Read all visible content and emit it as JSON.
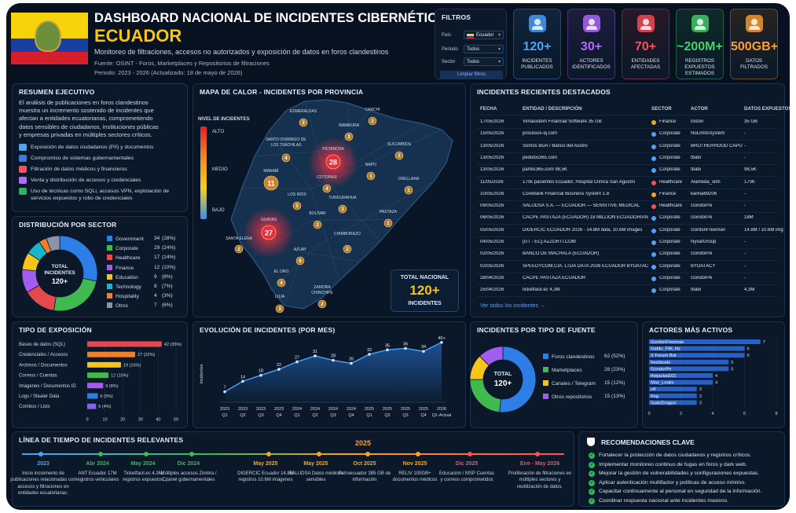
{
  "header": {
    "title": "DASHBOARD NACIONAL DE INCIDENTES CIBERNÉTICOS",
    "country": "ECUADOR",
    "subtitle": "Monitoreo de filtraciones, accesos no autorizados y exposición de datos en foros clandestinos",
    "source": "Fuente: OSINT - Foros, Marketplaces y Repositorios de filtraciones",
    "period": "Periodo: 2023 - 2026 (Actualizado: 18 de mayo de 2026)",
    "flag_colors": [
      "#f6d30b",
      "#1a3fa0",
      "#d61f2c"
    ]
  },
  "filters": {
    "title": "FILTROS",
    "rows": [
      {
        "label": "País",
        "value": "Ecuador"
      },
      {
        "label": "Periodo",
        "value": "Todos"
      },
      {
        "label": "Sector",
        "value": "Todos"
      }
    ],
    "button": "Limpiar filtros"
  },
  "kpis": [
    {
      "value": "120+",
      "label": "INCIDENTES PUBLICADOS",
      "color": "#4aa3ff",
      "icon": "users-icon"
    },
    {
      "value": "30+",
      "label": "ACTORES IDENTIFICADOS",
      "color": "#b26bff",
      "icon": "hacker-icon"
    },
    {
      "value": "70+",
      "label": "ENTIDADES AFECTADAS",
      "color": "#ff4d5a",
      "icon": "building-icon"
    },
    {
      "value": "~200M+",
      "label": "REGISTROS EXPUESTOS ESTIMADOS",
      "color": "#47d16a",
      "icon": "database-icon"
    },
    {
      "value": "500GB+",
      "label": "DATOS FILTRADOS",
      "color": "#ff9f2e",
      "icon": "file-icon"
    }
  ],
  "summary": {
    "title": "RESUMEN EJECUTIVO",
    "text_lines": [
      "El análisis de publicaciones en foros clandestinos",
      "muestra un incremento sostenido de incidentes que",
      "afectan a entidades ecuatorianas, comprometiendo",
      "datos sensibles de ciudadanos, instituciones públicas",
      "y empresas privadas en múltiples sectores críticos."
    ],
    "bullets": [
      {
        "text": "Exposición de datos ciudadanos (PII) y documentos",
        "color": "#4aa3ff"
      },
      {
        "text": "Compromiso de sistemas gubernamentales",
        "color": "#3b7be0"
      },
      {
        "text": "Filtración de datos médicos y financieros",
        "color": "#ff4d5a"
      },
      {
        "text": "Venta y distribución de accesos y credenciales",
        "color": "#b26bff"
      },
      {
        "text": "Uso de técnicas como SQLi, accesos VPN, explotación de servicios expuestos y robo de credenciales",
        "color": "#2fb35a"
      }
    ]
  },
  "heatmap": {
    "title": "MAPA DE CALOR - INCIDENTES POR PROVINCIA",
    "legend_title": "NIVEL DE INCIDENTES",
    "legend_labels": [
      "ALTO",
      "MEDIO",
      "BAJO"
    ],
    "provinces": [
      {
        "name": "ESMERALDAS",
        "value": "3"
      },
      {
        "name": "CARCHI",
        "value": "2"
      },
      {
        "name": "IMBABURA",
        "value": "3"
      },
      {
        "name": "SANTO DOMINGO DE LOS TSÁCHILAS",
        "value": "4"
      },
      {
        "name": "PICHINCHA",
        "value": "28"
      },
      {
        "name": "SUCUMBÍOS",
        "value": "2"
      },
      {
        "name": "MANABÍ",
        "value": "11"
      },
      {
        "name": "COTOPAXI",
        "value": "4"
      },
      {
        "name": "NAPO",
        "value": "1"
      },
      {
        "name": "ORELLANA",
        "value": "1"
      },
      {
        "name": "LOS RÍOS",
        "value": "5"
      },
      {
        "name": "TUNGURAHUA",
        "value": "3"
      },
      {
        "name": "GUAYAS",
        "value": "27"
      },
      {
        "name": "BOLÍVAR",
        "value": "2"
      },
      {
        "name": "PASTAZA",
        "value": "1"
      },
      {
        "name": "SANTA ELENA",
        "value": "2"
      },
      {
        "name": "CHIMBORAZO",
        "value": "2"
      },
      {
        "name": "AZUAY",
        "value": "6"
      },
      {
        "name": "EL ORO",
        "value": "4"
      },
      {
        "name": "LOJA",
        "value": "3"
      },
      {
        "name": "ZAMORA CHINCHIPE",
        "value": "2"
      }
    ],
    "total_label": "TOTAL NACIONAL",
    "total_value": "120+",
    "total_unit": "INCIDENTES"
  },
  "recent": {
    "title": "INCIDENTES RECIENTES DESTACADOS",
    "columns": [
      "FECHA",
      "ENTIDAD / DESCRIPCIÓN",
      "SECTOR",
      "ACTOR",
      "DATOS EXPUESTOS"
    ],
    "rows": [
      [
        "17/05/2026",
        "Vimasistem Financial Software 35 GB",
        "Finance",
        "tostón",
        "35 GB"
      ],
      [
        "15/05/2026",
        "procesos-iq.com",
        "Corporate",
        "NoLimitsSystem",
        "-"
      ],
      [
        "13/05/2026",
        "Somos BDA / Banco del Austro",
        "Corporate",
        "BROTHERHOOD CAPUNG",
        "-"
      ],
      [
        "13/05/2026",
        "pedidos365.com",
        "Corporate",
        "tbabi",
        "-"
      ],
      [
        "13/05/2026",
        "partes365.com 98,5K",
        "Corporate",
        "tbabi",
        "98,5K"
      ],
      [
        "11/05/2026",
        "170k pacientes Ecuador, Hospital Clínica San Agustín",
        "Healthcare",
        "Alameda_slim",
        "170K"
      ],
      [
        "10/05/2026",
        "CoreBank Financial Business System 1.8",
        "Finance",
        "karina69206",
        "-"
      ],
      [
        "09/05/2026",
        "SALUDSA S.A. — ECUADOR — SENSITIVE MEDICAL",
        "Healthcare",
        "GondorPe",
        "-"
      ],
      [
        "06/05/2026",
        "CACPE PASTAZA (ECUADOR) 18 MILLION ECUADORIANS",
        "Corporate",
        "GondorPe",
        "18M"
      ],
      [
        "05/05/2026",
        "DIGERCIC ECUADOR 2026 - 14.8M data, 10.6M images",
        "Corporate",
        "GordonFreeman",
        "14.8M / 10.6M img"
      ],
      [
        "04/05/2026",
        "[GT - EC] AZZORTI.COM",
        "Corporate",
        "NyxarGroup",
        "-"
      ],
      [
        "02/05/2026",
        "BANCO DE MACHALA (ECUADOR)",
        "Corporate",
        "GondorPe",
        "-"
      ],
      [
        "02/05/2026",
        "SPEEDYCOM.CIA. LTDA DATA 2026 ECUADOR BYDATACY",
        "Corporate",
        "BYDATACY",
        "-"
      ],
      [
        "28/04/2026",
        "CACPE PASTAZA ECUADOR",
        "Corporate",
        "GondorPe",
        "-"
      ],
      [
        "25/04/2026",
        "ticketfacil.ec 4,3M",
        "Corporate",
        "tbabi",
        "4,3M"
      ]
    ],
    "link": "Ver todos los incidentes →",
    "sector_colors": {
      "Finance": "#f5a524",
      "Corporate": "#4aa3ff",
      "Healthcare": "#ff4d5a"
    }
  },
  "sectors": {
    "title": "DISTRIBUCIÓN POR SECTOR",
    "center_label": "TOTAL INCIDENTES",
    "center_value": "120+",
    "items": [
      {
        "name": "Government",
        "count": "34",
        "pct": "(28%)",
        "value": 34,
        "color": "#2e7ee8"
      },
      {
        "name": "Corporate",
        "count": "29",
        "pct": "(24%)",
        "value": 29,
        "color": "#3fb950"
      },
      {
        "name": "Healthcare",
        "count": "17",
        "pct": "(14%)",
        "value": 17,
        "color": "#e5484d"
      },
      {
        "name": "Finance",
        "count": "12",
        "pct": "(10%)",
        "value": 12,
        "color": "#a35cf0"
      },
      {
        "name": "Education",
        "count": "9",
        "pct": "(8%)",
        "value": 9,
        "color": "#f5c518"
      },
      {
        "name": "Technology",
        "count": "8",
        "pct": "(7%)",
        "value": 8,
        "color": "#19b6c9"
      },
      {
        "name": "Hospitality",
        "count": "4",
        "pct": "(3%)",
        "value": 4,
        "color": "#ef7f2a"
      },
      {
        "name": "Otros",
        "count": "7",
        "pct": "(6%)",
        "value": 7,
        "color": "#8a96a8"
      }
    ]
  },
  "chart_data": [
    {
      "type": "bar",
      "title": "TIPO DE EXPOSICIÓN",
      "orientation": "horizontal",
      "categories": [
        "Bases de datos (SQL)",
        "Credenciales / Accesos",
        "Archivos / Documentos",
        "Correos / Cuentas",
        "Imágenes / Documentos ID",
        "Logs / Stealer Data",
        "Combos / Lists"
      ],
      "values": [
        42,
        27,
        19,
        12,
        9,
        6,
        5
      ],
      "labels": [
        "42 (35%)",
        "27 (22%)",
        "19 (16%)",
        "12 (10%)",
        "9 (8%)",
        "6 (5%)",
        "5 (4%)"
      ],
      "colors": [
        "#e5484d",
        "#ef7f2a",
        "#f5c518",
        "#3fb950",
        "#a35cf0",
        "#2e7ee8",
        "#8a5cf0"
      ],
      "xlim": [
        0,
        50
      ],
      "xticks": [
        "0",
        "10",
        "20",
        "30",
        "40",
        "50"
      ]
    },
    {
      "type": "area",
      "title": "EVOLUCIÓN DE INCIDENTES (POR MES)",
      "ylabel": "Incidentes",
      "categories": [
        "2023 Q1",
        "2023 Q2",
        "2023 Q3",
        "2023 Q4",
        "2024 Q1",
        "2024 Q2",
        "2024 Q3",
        "2024 Q4",
        "2025 Q1",
        "2025 Q2",
        "2025 Q3",
        "2025 Q4",
        "2026 Q1-Actual"
      ],
      "tick_top": [
        "2023",
        "2023",
        "2023",
        "2023",
        "2024",
        "2024",
        "2024",
        "2024",
        "2025",
        "2025",
        "2025",
        "2025",
        "2026"
      ],
      "tick_bottom": [
        "Q1",
        "Q2",
        "Q3",
        "Q4",
        "Q1",
        "Q2",
        "Q3",
        "Q4",
        "Q1",
        "Q2",
        "Q3",
        "Q4",
        "Q1-Actual"
      ],
      "values": [
        7,
        14,
        18,
        22,
        27,
        31,
        28,
        26,
        32,
        35,
        36,
        34,
        40
      ],
      "labels": [
        "7",
        "14",
        "18",
        "22",
        "27",
        "31",
        "28",
        "26",
        "32",
        "35",
        "36",
        "34",
        "40+"
      ],
      "ylim": [
        0,
        42
      ]
    },
    {
      "type": "pie",
      "title": "INCIDENTES POR TIPO DE FUENTE",
      "center_label": "TOTAL",
      "center_value": "120+",
      "categories": [
        "Foros clandestinos",
        "Marketplaces",
        "Canales / Telegram",
        "Otros repositorios"
      ],
      "values": [
        62,
        28,
        15,
        15
      ],
      "labels": [
        "62 (52%)",
        "28 (23%)",
        "15 (12%)",
        "15 (13%)"
      ],
      "colors": [
        "#2e7ee8",
        "#3fb950",
        "#f5c518",
        "#a35cf0"
      ]
    },
    {
      "type": "bar",
      "title": "ACTORES MÁS ACTIVOS",
      "orientation": "horizontal",
      "categories": [
        "GordonFreeman",
        "Gatito_FBI_Nz",
        "X Forum Bot",
        "freshtools",
        "GondorPe",
        "thejackal101",
        "Max_Leaks",
        "ctf",
        "frog",
        "SudoDragon"
      ],
      "values": [
        7,
        6,
        6,
        5,
        5,
        4,
        4,
        3,
        3,
        3
      ],
      "xlim": [
        0,
        8
      ],
      "xticks": [
        "0",
        "2",
        "4",
        "6",
        "8"
      ],
      "color": "#2e6fe0"
    }
  ],
  "timeline": {
    "title": "LÍNEA DE TIEMPO DE INCIDENTES RELEVANTES",
    "year_mid": "2025",
    "items": [
      {
        "date": "2023",
        "text": "Inicio incremento de publicaciones relacionadas con accesos y filtraciones en entidades ecuatorianas.",
        "color": "#4aa3ff"
      },
      {
        "date": "Abr 2024",
        "text": "ANT Ecuador 17M registros vehiculares",
        "color": "#3fb950"
      },
      {
        "date": "May 2024",
        "text": "Ticketfacil.ec 4,3M registros expuestos",
        "color": "#3fb950"
      },
      {
        "date": "Dic 2024",
        "text": "Múltiples accesos Zimbra / Cpanel gubernamentales",
        "color": "#3fb950"
      },
      {
        "date": "May 2025",
        "text": "DIGERCIC Ecuador 14.8M registros 10.6M imágenes",
        "color": "#f5a524"
      },
      {
        "date": "May 2025",
        "text": "SALUDSA Datos médicos sensibles",
        "color": "#f5a524"
      },
      {
        "date": "Oct 2025",
        "text": "Petroecuador 385 GB de información",
        "color": "#f5a524"
      },
      {
        "date": "Nov 2025",
        "text": "RELIV 100GB+ documentos médicos",
        "color": "#f5a524"
      },
      {
        "date": "Dic 2025",
        "text": "Educación / MSP Cuentas y correos comprometidos",
        "color": "#ff4d5a"
      },
      {
        "date": "Ene - May 2026",
        "text": "Proliferación de filtraciones en múltiples sectores y reutilización de datos.",
        "color": "#ff4d5a"
      }
    ]
  },
  "recommendations": {
    "title": "RECOMENDACIONES CLAVE",
    "items": [
      "Fortalecer la protección de datos ciudadanos y registros críticos.",
      "Implementar monitoreo continuo de fugas en foros y dark web.",
      "Mejorar la gestión de vulnerabilidades y configuraciones expuestas.",
      "Aplicar autenticación multifactor y políticas de acceso mínimo.",
      "Capacitar continuamente al personal en seguridad de la información.",
      "Coordinar respuesta nacional ante incidentes masivos."
    ]
  }
}
